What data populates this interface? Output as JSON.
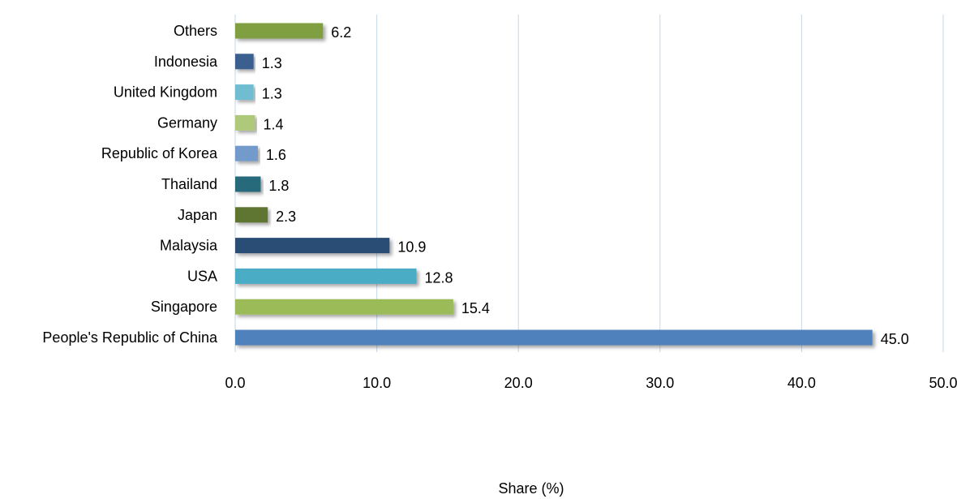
{
  "chart_data": {
    "type": "bar",
    "orientation": "horizontal",
    "categories": [
      "People's Republic of China",
      "Singapore",
      "USA",
      "Malaysia",
      "Japan",
      "Thailand",
      "Republic of Korea",
      "Germany",
      "United Kingdom",
      "Indonesia",
      "Others"
    ],
    "values": [
      45.0,
      15.4,
      12.8,
      10.9,
      2.3,
      1.8,
      1.6,
      1.4,
      1.3,
      1.3,
      6.2
    ],
    "value_labels": [
      "45.0",
      "15.4",
      "12.8",
      "10.9",
      "2.3",
      "1.8",
      "1.6",
      "1.4",
      "1.3",
      "1.3",
      "6.2"
    ],
    "colors": [
      "#4f81bd",
      "#9bbb59",
      "#4bacc6",
      "#2c4d75",
      "#5f7530",
      "#276a7c",
      "#729aca",
      "#afc97a",
      "#6fbdd1",
      "#3a5f8f",
      "#7f9f3f"
    ],
    "xlabel": "Share (%)",
    "ylabel": "",
    "xlim": [
      0,
      50
    ],
    "xticks": [
      "0.0",
      "10.0",
      "20.0",
      "30.0",
      "40.0",
      "50.0"
    ],
    "gridlines": "vertical",
    "gridline_color": "#c6d7e8",
    "legend": "none"
  }
}
